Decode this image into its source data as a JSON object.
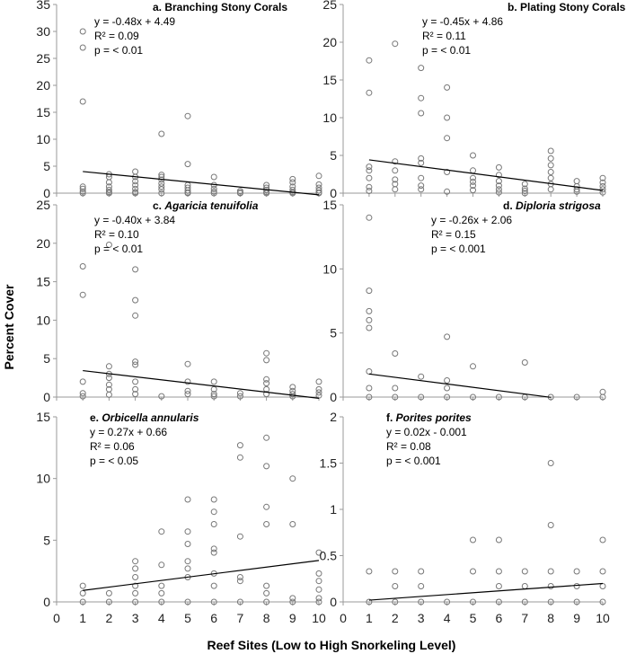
{
  "figure": {
    "ylabel": "Percent Cover",
    "xlabel": "Reef Sites (Low to High Snorkeling Level)",
    "x_ticks": [
      "0",
      "1",
      "2",
      "3",
      "4",
      "5",
      "6",
      "7",
      "8",
      "9",
      "10"
    ]
  },
  "colors": {
    "marker": "#777777",
    "axis": "#9a9a9a",
    "trend": "#000000"
  },
  "chart_data": [
    {
      "type": "scatter",
      "title_prefix": "a. ",
      "title_italic": "",
      "title_rest": "Branching Stony Corals",
      "equation": "y = -0.48x + 4.49",
      "r2": "R² = 0.09",
      "pvalue": "p = < 0.01",
      "xlim": [
        0,
        10
      ],
      "ylim": [
        0,
        35
      ],
      "y_ticks": [
        "0",
        "5",
        "10",
        "15",
        "20",
        "25",
        "30",
        "35"
      ],
      "y_tick_values": [
        0,
        5,
        10,
        15,
        20,
        25,
        30,
        35
      ],
      "trendline": {
        "slope": -0.48,
        "intercept": 4.49,
        "x_range": [
          1,
          10
        ]
      },
      "points": [
        [
          1,
          30
        ],
        [
          1,
          27
        ],
        [
          1,
          17
        ],
        [
          1,
          1.2
        ],
        [
          1,
          0.8
        ],
        [
          1,
          0.3
        ],
        [
          1,
          0
        ],
        [
          2,
          3.5
        ],
        [
          2,
          3
        ],
        [
          2,
          2
        ],
        [
          2,
          1.2
        ],
        [
          2,
          0.6
        ],
        [
          2,
          0.2
        ],
        [
          2,
          0
        ],
        [
          3,
          4
        ],
        [
          3,
          3
        ],
        [
          3,
          2.2
        ],
        [
          3,
          1.5
        ],
        [
          3,
          0.8
        ],
        [
          3,
          0.2
        ],
        [
          3,
          0
        ],
        [
          4,
          11
        ],
        [
          4,
          3.4
        ],
        [
          4,
          3
        ],
        [
          4,
          2.5
        ],
        [
          4,
          1.8
        ],
        [
          4,
          1.2
        ],
        [
          4,
          0.7
        ],
        [
          4,
          0
        ],
        [
          5,
          14.3
        ],
        [
          5,
          5.4
        ],
        [
          5,
          1.5
        ],
        [
          5,
          1
        ],
        [
          5,
          0.5
        ],
        [
          5,
          0.1
        ],
        [
          5,
          0
        ],
        [
          6,
          3
        ],
        [
          6,
          1.5
        ],
        [
          6,
          0.8
        ],
        [
          6,
          0.3
        ],
        [
          6,
          0
        ],
        [
          7,
          0.4
        ],
        [
          7,
          0.1
        ],
        [
          7,
          0
        ],
        [
          8,
          1.5
        ],
        [
          8,
          1
        ],
        [
          8,
          0.6
        ],
        [
          8,
          0.2
        ],
        [
          8,
          0
        ],
        [
          9,
          2.6
        ],
        [
          9,
          2
        ],
        [
          9,
          1.2
        ],
        [
          9,
          0.6
        ],
        [
          9,
          0.2
        ],
        [
          9,
          0
        ],
        [
          10,
          3.2
        ],
        [
          10,
          1.6
        ],
        [
          10,
          1
        ],
        [
          10,
          0.5
        ],
        [
          10,
          0.1
        ],
        [
          10,
          0
        ]
      ]
    },
    {
      "type": "scatter",
      "title_prefix": "b. ",
      "title_italic": "",
      "title_rest": "Plating Stony Corals",
      "equation": "y = -0.45x + 4.86",
      "r2": "R² = 0.11",
      "pvalue": "p = < 0.01",
      "xlim": [
        0,
        10
      ],
      "ylim": [
        0,
        25
      ],
      "y_ticks": [
        "0",
        "5",
        "10",
        "15",
        "20",
        "25"
      ],
      "y_tick_values": [
        0,
        5,
        10,
        15,
        20,
        25
      ],
      "trendline": {
        "slope": -0.45,
        "intercept": 4.86,
        "x_range": [
          1,
          10
        ]
      },
      "points": [
        [
          1,
          17.6
        ],
        [
          1,
          13.3
        ],
        [
          1,
          3.5
        ],
        [
          1,
          3
        ],
        [
          1,
          2
        ],
        [
          1,
          0.8
        ],
        [
          1,
          0.3
        ],
        [
          2,
          19.8
        ],
        [
          2,
          4.2
        ],
        [
          2,
          3
        ],
        [
          2,
          1.8
        ],
        [
          2,
          1.2
        ],
        [
          2,
          0.5
        ],
        [
          3,
          16.6
        ],
        [
          3,
          12.6
        ],
        [
          3,
          10.6
        ],
        [
          3,
          4.6
        ],
        [
          3,
          4
        ],
        [
          3,
          2
        ],
        [
          3,
          1
        ],
        [
          3,
          0.5
        ],
        [
          4,
          14
        ],
        [
          4,
          10
        ],
        [
          4,
          7.3
        ],
        [
          4,
          2.8
        ],
        [
          4,
          0.2
        ],
        [
          5,
          5
        ],
        [
          5,
          3
        ],
        [
          5,
          2
        ],
        [
          5,
          1.5
        ],
        [
          5,
          1
        ],
        [
          5,
          0.4
        ],
        [
          6,
          3.4
        ],
        [
          6,
          2.4
        ],
        [
          6,
          1.6
        ],
        [
          6,
          1
        ],
        [
          6,
          0.5
        ],
        [
          6,
          0.1
        ],
        [
          7,
          1.2
        ],
        [
          7,
          0.6
        ],
        [
          7,
          0.3
        ],
        [
          7,
          0
        ],
        [
          8,
          5.6
        ],
        [
          8,
          4.6
        ],
        [
          8,
          3.7
        ],
        [
          8,
          2.8
        ],
        [
          8,
          2
        ],
        [
          8,
          1.2
        ],
        [
          8,
          0.5
        ],
        [
          9,
          1.6
        ],
        [
          9,
          0.9
        ],
        [
          9,
          0.5
        ],
        [
          9,
          0.2
        ],
        [
          10,
          2
        ],
        [
          10,
          1.4
        ],
        [
          10,
          0.9
        ],
        [
          10,
          0.5
        ],
        [
          10,
          0.1
        ]
      ]
    },
    {
      "type": "scatter",
      "title_prefix": "c. ",
      "title_italic": "Agaricia tenuifolia",
      "title_rest": "",
      "equation": "y = -0.40x + 3.84",
      "r2": "R² = 0.10",
      "pvalue": "p = < 0.01",
      "xlim": [
        0,
        10
      ],
      "ylim": [
        0,
        25
      ],
      "y_ticks": [
        "0",
        "5",
        "10",
        "15",
        "20",
        "25"
      ],
      "y_tick_values": [
        0,
        5,
        10,
        15,
        20,
        25
      ],
      "trendline": {
        "slope": -0.4,
        "intercept": 3.84,
        "x_range": [
          1,
          10
        ]
      },
      "points": [
        [
          1,
          17
        ],
        [
          1,
          13.3
        ],
        [
          1,
          2
        ],
        [
          1,
          0.5
        ],
        [
          1,
          0.1
        ],
        [
          2,
          19.8
        ],
        [
          2,
          4
        ],
        [
          2,
          3
        ],
        [
          2,
          2.5
        ],
        [
          2,
          1.6
        ],
        [
          2,
          1
        ],
        [
          2,
          0.3
        ],
        [
          3,
          16.6
        ],
        [
          3,
          12.6
        ],
        [
          3,
          10.6
        ],
        [
          3,
          4.6
        ],
        [
          3,
          4.2
        ],
        [
          3,
          2
        ],
        [
          3,
          1
        ],
        [
          3,
          0.4
        ],
        [
          4,
          0.1
        ],
        [
          5,
          4.3
        ],
        [
          5,
          2
        ],
        [
          5,
          0.8
        ],
        [
          5,
          0.4
        ],
        [
          6,
          2
        ],
        [
          6,
          1
        ],
        [
          6,
          0.4
        ],
        [
          6,
          0.1
        ],
        [
          7,
          0.5
        ],
        [
          7,
          0.1
        ],
        [
          8,
          5.7
        ],
        [
          8,
          4.8
        ],
        [
          8,
          2.3
        ],
        [
          8,
          1.8
        ],
        [
          8,
          1
        ],
        [
          8,
          0.4
        ],
        [
          9,
          1.3
        ],
        [
          9,
          0.8
        ],
        [
          9,
          0.4
        ],
        [
          9,
          0.1
        ],
        [
          10,
          2
        ],
        [
          10,
          1
        ],
        [
          10,
          0.6
        ],
        [
          10,
          0.2
        ]
      ]
    },
    {
      "type": "scatter",
      "title_prefix": "d. ",
      "title_italic": "Diploria strigosa",
      "title_rest": "",
      "equation": "y = -0.26x + 2.06",
      "r2": "R² = 0.15",
      "pvalue": "p = < 0.001",
      "xlim": [
        0,
        10
      ],
      "ylim": [
        0,
        15
      ],
      "y_ticks": [
        "0",
        "5",
        "10",
        "15"
      ],
      "y_tick_values": [
        0,
        5,
        10,
        15
      ],
      "trendline": {
        "slope": -0.26,
        "intercept": 2.06,
        "x_range": [
          1,
          8
        ]
      },
      "points": [
        [
          1,
          14
        ],
        [
          1,
          8.3
        ],
        [
          1,
          6.7
        ],
        [
          1,
          6
        ],
        [
          1,
          5.4
        ],
        [
          1,
          2
        ],
        [
          1,
          0.7
        ],
        [
          1,
          0
        ],
        [
          2,
          3.4
        ],
        [
          2,
          0.7
        ],
        [
          2,
          0
        ],
        [
          3,
          1.6
        ],
        [
          3,
          0
        ],
        [
          4,
          4.7
        ],
        [
          4,
          1.3
        ],
        [
          4,
          0.7
        ],
        [
          4,
          0
        ],
        [
          5,
          2.4
        ],
        [
          5,
          0
        ],
        [
          6,
          0
        ],
        [
          7,
          2.7
        ],
        [
          7,
          0
        ],
        [
          8,
          0
        ],
        [
          9,
          0
        ],
        [
          10,
          0.4
        ],
        [
          10,
          0
        ]
      ]
    },
    {
      "type": "scatter",
      "title_prefix": "e. ",
      "title_italic": "Orbicella annularis",
      "title_rest": "",
      "equation": "y = 0.27x + 0.66",
      "r2": "R² = 0.06",
      "pvalue": "p = < 0.05",
      "xlim": [
        0,
        10
      ],
      "ylim": [
        0,
        15
      ],
      "y_ticks": [
        "0",
        "5",
        "10",
        "15"
      ],
      "y_tick_values": [
        0,
        5,
        10,
        15
      ],
      "trendline": {
        "slope": 0.27,
        "intercept": 0.66,
        "x_range": [
          1,
          10
        ]
      },
      "points": [
        [
          1,
          1.3
        ],
        [
          1,
          0.7
        ],
        [
          1,
          0
        ],
        [
          2,
          0.7
        ],
        [
          2,
          0
        ],
        [
          3,
          3.3
        ],
        [
          3,
          2.7
        ],
        [
          3,
          2
        ],
        [
          3,
          1.3
        ],
        [
          3,
          0.7
        ],
        [
          3,
          0
        ],
        [
          4,
          5.7
        ],
        [
          4,
          3
        ],
        [
          4,
          1.3
        ],
        [
          4,
          0.7
        ],
        [
          4,
          0
        ],
        [
          5,
          8.3
        ],
        [
          5,
          5.7
        ],
        [
          5,
          4.7
        ],
        [
          5,
          3.3
        ],
        [
          5,
          2.7
        ],
        [
          5,
          2
        ],
        [
          5,
          0
        ],
        [
          6,
          8.3
        ],
        [
          6,
          7.3
        ],
        [
          6,
          6.3
        ],
        [
          6,
          4.3
        ],
        [
          6,
          4
        ],
        [
          6,
          2.3
        ],
        [
          6,
          1.3
        ],
        [
          6,
          0
        ],
        [
          7,
          12.7
        ],
        [
          7,
          11.7
        ],
        [
          7,
          5.3
        ],
        [
          7,
          2
        ],
        [
          7,
          1.7
        ],
        [
          7,
          0
        ],
        [
          8,
          13.3
        ],
        [
          8,
          11
        ],
        [
          8,
          7.7
        ],
        [
          8,
          6.3
        ],
        [
          8,
          1.3
        ],
        [
          8,
          0.7
        ],
        [
          8,
          0
        ],
        [
          9,
          10
        ],
        [
          9,
          6.3
        ],
        [
          9,
          0.3
        ],
        [
          9,
          0
        ],
        [
          10,
          4
        ],
        [
          10,
          2.3
        ],
        [
          10,
          1.7
        ],
        [
          10,
          1
        ],
        [
          10,
          0.3
        ],
        [
          10,
          0
        ]
      ]
    },
    {
      "type": "scatter",
      "title_prefix": "f. ",
      "title_italic": "Porites porites",
      "title_rest": "",
      "equation": "y = 0.02x - 0.001",
      "r2": "R² = 0.08",
      "pvalue": "p =  < 0.001",
      "xlim": [
        0,
        10
      ],
      "ylim": [
        0,
        2
      ],
      "y_ticks": [
        "0",
        "0.5",
        "1",
        "1.5",
        "2"
      ],
      "y_tick_values": [
        0,
        0.5,
        1,
        1.5,
        2
      ],
      "trendline": {
        "slope": 0.02,
        "intercept": -0.001,
        "x_range": [
          1,
          10
        ]
      },
      "points": [
        [
          1,
          0.33
        ],
        [
          1,
          0
        ],
        [
          2,
          0.33
        ],
        [
          2,
          0.17
        ],
        [
          2,
          0
        ],
        [
          3,
          0.33
        ],
        [
          3,
          0.17
        ],
        [
          3,
          0
        ],
        [
          4,
          0
        ],
        [
          5,
          0.67
        ],
        [
          5,
          0.33
        ],
        [
          5,
          0
        ],
        [
          6,
          0.67
        ],
        [
          6,
          0.33
        ],
        [
          6,
          0.17
        ],
        [
          6,
          0
        ],
        [
          7,
          0.33
        ],
        [
          7,
          0.17
        ],
        [
          7,
          0
        ],
        [
          8,
          1.5
        ],
        [
          8,
          0.83
        ],
        [
          8,
          0.33
        ],
        [
          8,
          0.17
        ],
        [
          8,
          0
        ],
        [
          9,
          0.33
        ],
        [
          9,
          0.17
        ],
        [
          9,
          0
        ],
        [
          10,
          0.67
        ],
        [
          10,
          0.33
        ],
        [
          10,
          0.17
        ],
        [
          10,
          0
        ]
      ]
    }
  ]
}
